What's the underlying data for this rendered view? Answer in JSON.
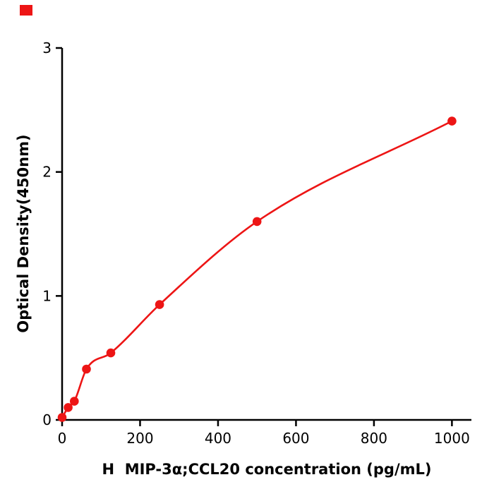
{
  "chart_data": {
    "type": "scatter",
    "title": "",
    "xlabel": "H  MIP-3α;CCL20 concentration (pg/mL)",
    "ylabel": "Optical Density(450nm)",
    "x": [
      0,
      15.6,
      31.25,
      62.5,
      125,
      250,
      500,
      1000
    ],
    "y": [
      0.02,
      0.1,
      0.15,
      0.41,
      0.54,
      0.93,
      1.6,
      2.41
    ],
    "fit_line": "smooth monotone curve through points",
    "xlim": [
      0,
      1050
    ],
    "ylim": [
      0,
      3
    ],
    "xticks": [
      0,
      200,
      400,
      600,
      800,
      1000
    ],
    "yticks": [
      0,
      1,
      2,
      3
    ],
    "grid": false,
    "legend": "none",
    "marker_color": "#ed1515",
    "line_color": "#ed1515",
    "axis_color": "#000000"
  },
  "decor": {
    "corner_mark_color": "#ed1515"
  }
}
